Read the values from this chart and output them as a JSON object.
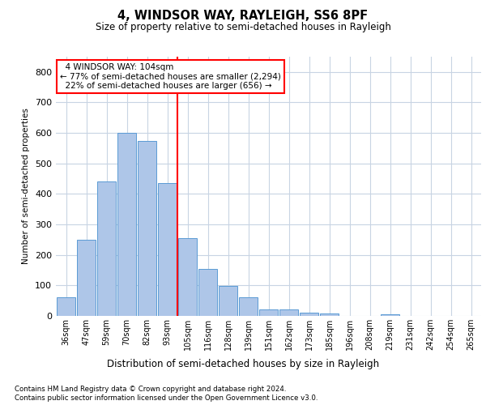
{
  "title": "4, WINDSOR WAY, RAYLEIGH, SS6 8PF",
  "subtitle": "Size of property relative to semi-detached houses in Rayleigh",
  "xlabel": "Distribution of semi-detached houses by size in Rayleigh",
  "ylabel": "Number of semi-detached properties",
  "categories": [
    "36sqm",
    "47sqm",
    "59sqm",
    "70sqm",
    "82sqm",
    "93sqm",
    "105sqm",
    "116sqm",
    "128sqm",
    "139sqm",
    "151sqm",
    "162sqm",
    "173sqm",
    "185sqm",
    "196sqm",
    "208sqm",
    "219sqm",
    "231sqm",
    "242sqm",
    "254sqm",
    "265sqm"
  ],
  "values": [
    60,
    250,
    440,
    600,
    575,
    435,
    255,
    155,
    97,
    60,
    20,
    20,
    10,
    8,
    0,
    0,
    5,
    0,
    0,
    0,
    0
  ],
  "bar_color": "#aec6e8",
  "bar_edge_color": "#5b9bd5",
  "vline_x": 6,
  "vline_label": "4 WINDSOR WAY: 104sqm",
  "pct_smaller": "77%",
  "n_smaller": "2,294",
  "pct_larger": "22%",
  "n_larger": "656",
  "ylim": [
    0,
    850
  ],
  "yticks": [
    0,
    100,
    200,
    300,
    400,
    500,
    600,
    700,
    800
  ],
  "footer_line1": "Contains HM Land Registry data © Crown copyright and database right 2024.",
  "footer_line2": "Contains public sector information licensed under the Open Government Licence v3.0.",
  "background_color": "#ffffff",
  "grid_color": "#c8d4e3"
}
